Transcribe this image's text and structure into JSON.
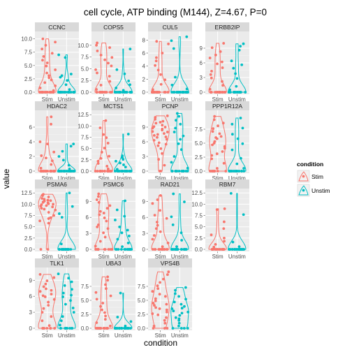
{
  "chart_data": {
    "type": "violin-jitter-facets",
    "title": "cell cycle, ATP binding (M144), Z=4.67, P=0",
    "xlabel": "condition",
    "ylabel": "value",
    "categories": [
      "Stim",
      "Unstim"
    ],
    "legend": {
      "title": "condition",
      "placement": "right",
      "entries": [
        {
          "label": "Stim",
          "color": "#F8766D"
        },
        {
          "label": "Unstim",
          "color": "#00BFC4"
        }
      ]
    },
    "colors": {
      "Stim": "#F8766D",
      "Unstim": "#00BFC4",
      "panel": "#EBEBEB",
      "strip": "#D9D9D9",
      "grid": "#FFFFFF"
    },
    "facets": [
      {
        "name": "CCNC",
        "ylim": [
          0,
          11
        ],
        "yticks": [
          "0.0",
          "2.5",
          "5.0",
          "7.5",
          "10.0"
        ],
        "ytick_values": [
          0,
          2.5,
          5,
          7.5,
          10
        ],
        "stim": [
          0,
          0,
          0,
          0,
          0,
          0,
          0,
          0,
          0,
          0,
          0,
          0,
          0,
          0,
          0,
          0,
          0,
          0,
          0.3,
          0.8,
          1.2,
          1.8,
          2.3,
          2.7,
          3.1,
          3.6,
          4.2,
          4.9,
          5.5,
          6.0,
          6.7,
          7.3,
          8.1,
          8.8,
          9.4,
          10.0
        ],
        "unstim": [
          0,
          0,
          0,
          0,
          0,
          0,
          0,
          0,
          0,
          0,
          0,
          0,
          0,
          0,
          0,
          0,
          0,
          0,
          0,
          0,
          0,
          0.5,
          1.4,
          2.2,
          2.8,
          3.1,
          3.4,
          6.5,
          7.0
        ]
      },
      {
        "name": "COPS5",
        "ylim": [
          0,
          12.5
        ],
        "yticks": [
          "0.0",
          "2.5",
          "5.0",
          "7.5",
          "10.0"
        ],
        "ytick_values": [
          0,
          2.5,
          5,
          7.5,
          10
        ],
        "stim": [
          0,
          0,
          0,
          0,
          0,
          0,
          0,
          0,
          0,
          0,
          0,
          0,
          0,
          0,
          0,
          0.6,
          1.5,
          2.3,
          3.4,
          4.1,
          4.8,
          5.6,
          6.2,
          6.9,
          7.4,
          7.9,
          8.8,
          9.5,
          10.0,
          10.5
        ],
        "unstim": [
          0,
          0,
          0,
          0,
          0,
          0,
          0,
          0,
          0,
          0,
          0,
          0,
          0,
          0,
          0,
          0,
          0,
          0,
          0,
          0,
          0,
          0,
          0,
          0,
          0.4,
          0.9,
          1.6,
          2.4,
          3.9,
          4.8,
          9.2
        ]
      },
      {
        "name": "CUL5",
        "ylim": [
          0,
          9
        ],
        "yticks": [
          "0",
          "2",
          "4",
          "6",
          "8"
        ],
        "ytick_values": [
          0,
          2,
          4,
          6,
          8
        ],
        "stim": [
          0,
          0,
          0,
          0,
          0,
          0,
          0,
          0,
          0,
          0,
          0,
          0,
          0,
          0,
          0,
          0,
          0,
          0,
          0,
          0,
          0.4,
          1.2,
          1.9,
          2.7,
          3.4,
          4.1,
          4.8,
          5.3,
          6.0,
          7.4,
          7.8
        ],
        "unstim": [
          0,
          0,
          0,
          0,
          0,
          0,
          0,
          0,
          0,
          0,
          0,
          0,
          0,
          0,
          0,
          0,
          0,
          0,
          0,
          0,
          0,
          0,
          0,
          0,
          0,
          0.5,
          1.1,
          2.3,
          6.7,
          7.9,
          8.5
        ]
      },
      {
        "name": "ERBB2IP",
        "ylim": [
          0,
          12
        ],
        "yticks": [
          "0",
          "3",
          "6",
          "9"
        ],
        "ytick_values": [
          0,
          3,
          6,
          9
        ],
        "stim": [
          0,
          0,
          0,
          0,
          0,
          0,
          0,
          0,
          0,
          0,
          0,
          0,
          0,
          0,
          0,
          0,
          0.6,
          1.4,
          2.2,
          2.9,
          3.6,
          4.3,
          5.0,
          5.8,
          6.2,
          7.0,
          7.6,
          8.3,
          9.1,
          10.0
        ],
        "unstim": [
          0,
          0,
          0,
          0,
          0,
          0,
          0,
          0,
          0,
          0,
          0,
          0,
          0,
          0,
          0,
          0,
          0,
          0,
          0,
          0,
          0.5,
          1.2,
          2.8,
          3.8,
          4.9,
          5.6,
          6.4,
          8.6,
          9.4,
          9.9
        ]
      },
      {
        "name": "HDAC2",
        "ylim": [
          0,
          8
        ],
        "yticks": [
          "0",
          "2",
          "4",
          "6"
        ],
        "ytick_values": [
          0,
          2,
          4,
          6
        ],
        "stim": [
          0,
          0,
          0,
          0,
          0,
          0,
          0,
          0,
          0,
          0,
          0,
          0,
          0,
          0,
          0,
          0,
          0,
          0,
          0,
          0,
          0.4,
          0.9,
          1.4,
          1.8,
          2.1,
          2.6,
          3.7,
          4.0,
          6.4,
          7.4
        ],
        "unstim": [
          0,
          0,
          0,
          0,
          0,
          0,
          0,
          0,
          0,
          0,
          0,
          0,
          0,
          0,
          0,
          0,
          0,
          0,
          0,
          0,
          0,
          0,
          0,
          0,
          0.3,
          0.8,
          1.5,
          2.0,
          2.7,
          3.4,
          3.7
        ]
      },
      {
        "name": "MCTS1",
        "ylim": [
          0,
          13
        ],
        "yticks": [
          "0.0",
          "2.5",
          "5.0",
          "7.5",
          "10.0",
          "12.5"
        ],
        "ytick_values": [
          0,
          2.5,
          5,
          7.5,
          10,
          12.5
        ],
        "stim": [
          0,
          0,
          0,
          0,
          0,
          0,
          0,
          0,
          0,
          0,
          0,
          0,
          0,
          0,
          0,
          0,
          0,
          0.5,
          1.1,
          1.7,
          2.2,
          2.8,
          3.3,
          4.2,
          5.1,
          6.2,
          7.4,
          8.1,
          9.6,
          11.2
        ],
        "unstim": [
          0,
          0,
          0,
          0,
          0,
          0,
          0,
          0,
          0,
          0,
          0,
          0,
          0,
          0,
          0,
          0,
          0,
          0,
          0,
          0,
          0.4,
          0.9,
          1.4,
          1.8,
          2.2,
          2.6,
          3.0,
          3.4,
          8.2
        ]
      },
      {
        "name": "PCNP",
        "ylim": [
          0,
          12
        ],
        "yticks": [
          "0",
          "3",
          "6",
          "9"
        ],
        "ytick_values": [
          0,
          3,
          6,
          9
        ],
        "stim": [
          0,
          0,
          1.2,
          2.4,
          3.6,
          4.6,
          5.2,
          5.8,
          6.3,
          6.9,
          7.3,
          7.7,
          8.1,
          8.4,
          8.8,
          9.1,
          9.4,
          9.8,
          10.2,
          10.6,
          11.0,
          11.3,
          7.0,
          7.5,
          8.0,
          8.6,
          9.0,
          6.5,
          5.5,
          10.0
        ],
        "unstim": [
          0,
          0,
          0,
          0,
          0,
          0,
          0,
          0,
          0,
          0,
          0,
          0,
          0,
          0.6,
          1.8,
          3.0,
          4.4,
          5.6,
          6.5,
          7.2,
          8.0,
          8.8,
          9.6,
          10.4,
          11.2,
          11.8
        ]
      },
      {
        "name": "PPP1R12A",
        "ylim": [
          0,
          10.5
        ],
        "yticks": [
          "0.0",
          "2.5",
          "5.0",
          "7.5"
        ],
        "ytick_values": [
          0,
          2.5,
          5,
          7.5
        ],
        "stim": [
          0,
          0,
          0,
          0,
          0,
          0,
          0,
          0,
          0.5,
          1.4,
          2.2,
          2.8,
          3.5,
          4.1,
          4.7,
          5.3,
          5.8,
          6.2,
          6.7,
          7.1,
          7.6,
          8.1,
          8.6,
          9.2,
          9.8,
          3.1,
          4.4,
          5.0,
          6.0
        ],
        "unstim": [
          0,
          0,
          0,
          0,
          0,
          0,
          0,
          0,
          0,
          0,
          0,
          0,
          0,
          0,
          0,
          0,
          0,
          0.5,
          1.3,
          2.3,
          3.8,
          4.9,
          5.8,
          6.6,
          7.7,
          8.4,
          9.5
        ]
      },
      {
        "name": "PSMA6",
        "ylim": [
          0,
          13
        ],
        "yticks": [
          "0.0",
          "2.5",
          "5.0",
          "7.5",
          "10.0",
          "12.5"
        ],
        "ytick_values": [
          0,
          2.5,
          5,
          7.5,
          10,
          12.5
        ],
        "stim": [
          0,
          0,
          5.8,
          6.8,
          7.5,
          8.2,
          8.7,
          9.1,
          9.4,
          9.7,
          9.9,
          10.1,
          10.3,
          10.5,
          10.7,
          10.9,
          11.1,
          11.3,
          11.6,
          11.9,
          12.2,
          9.6,
          10.0,
          10.4,
          10.8,
          8.9,
          6.3,
          7.0
        ],
        "unstim": [
          0,
          0,
          0,
          0,
          0,
          0,
          0,
          0,
          0,
          0,
          0,
          0,
          0,
          0,
          0,
          0,
          0,
          0,
          0,
          0,
          0,
          0,
          0,
          1.2,
          7.1,
          7.9,
          9.5,
          12.5
        ]
      },
      {
        "name": "PSMC6",
        "ylim": [
          0,
          11
        ],
        "yticks": [
          "0",
          "3",
          "6",
          "9"
        ],
        "ytick_values": [
          0,
          3,
          6,
          9
        ],
        "stim": [
          0,
          0,
          0,
          0,
          0,
          0,
          0,
          0,
          0,
          0,
          0,
          0.6,
          1.5,
          2.3,
          3.1,
          3.9,
          4.6,
          5.3,
          5.9,
          6.5,
          7.1,
          7.7,
          8.2,
          8.8,
          9.3,
          9.9,
          10.4,
          4.2,
          6.8
        ],
        "unstim": [
          0,
          0,
          0,
          0,
          0,
          0,
          0,
          0,
          0,
          0,
          0,
          0,
          0,
          0,
          0.5,
          1.2,
          1.9,
          2.5,
          3.1,
          3.6,
          4.2,
          5.5,
          6.2,
          7.4,
          9.1
        ]
      },
      {
        "name": "RAD21",
        "ylim": [
          0,
          11
        ],
        "yticks": [
          "0",
          "3",
          "6",
          "9"
        ],
        "ytick_values": [
          0,
          3,
          6,
          9
        ],
        "stim": [
          0,
          0,
          0,
          0,
          0,
          0,
          0,
          0,
          0,
          0,
          0,
          0,
          0,
          0,
          0.5,
          1.2,
          1.9,
          2.6,
          3.3,
          3.9,
          4.5,
          5.1,
          5.8,
          6.4,
          7.3,
          8.6,
          9.3,
          10.1
        ],
        "unstim": [
          0,
          0,
          0,
          0,
          0,
          0,
          0,
          0,
          0,
          0,
          0,
          0,
          0,
          0,
          0,
          0,
          0,
          0,
          0,
          0,
          0.5,
          1.7,
          3.1,
          4.6,
          6.1,
          8.9,
          10.4
        ]
      },
      {
        "name": "RBM7",
        "ylim": [
          0,
          13
        ],
        "yticks": [
          "0.0",
          "2.5",
          "5.0",
          "7.5",
          "10.0",
          "12.5"
        ],
        "ytick_values": [
          0,
          2.5,
          5,
          7.5,
          10,
          12.5
        ],
        "stim": [
          0,
          0,
          0,
          0,
          0,
          0,
          0,
          0,
          0,
          0,
          0,
          0,
          0,
          0,
          0,
          0,
          0,
          0,
          0,
          0.5,
          1.1,
          1.8,
          2.5,
          3.2,
          4.6,
          6.1,
          8.8,
          9.0
        ],
        "unstim": [
          0,
          0,
          0,
          0,
          0,
          0,
          0,
          0,
          0,
          0,
          0,
          0,
          0,
          0,
          0,
          0,
          0,
          0,
          0,
          0,
          0,
          0,
          0,
          0,
          0,
          0.6,
          1.6,
          7.7,
          12.4
        ]
      },
      {
        "name": "TLK1",
        "ylim": [
          0,
          11
        ],
        "yticks": [
          "0",
          "3",
          "6",
          "9"
        ],
        "ytick_values": [
          0,
          3,
          6,
          9
        ],
        "stim": [
          0,
          0,
          0,
          0,
          0,
          0,
          0,
          0.5,
          1.4,
          2.2,
          3.0,
          3.7,
          4.3,
          4.9,
          5.4,
          5.9,
          6.4,
          6.9,
          7.4,
          7.8,
          8.3,
          8.9,
          9.5,
          10.1,
          6.1,
          7.1
        ],
        "unstim": [
          0,
          0,
          0,
          0,
          0,
          0,
          0,
          0,
          0,
          0,
          0.6,
          1.4,
          2.2,
          3.0,
          3.8,
          4.5,
          5.2,
          5.9,
          6.6,
          7.3,
          8.0,
          8.7,
          9.4,
          10.2,
          6.2
        ]
      },
      {
        "name": "UBA3",
        "ylim": [
          0,
          10.5
        ],
        "yticks": [
          "0.0",
          "2.5",
          "5.0",
          "7.5"
        ],
        "ytick_values": [
          0,
          2.5,
          5,
          7.5
        ],
        "stim": [
          0,
          0,
          0,
          0,
          0,
          0,
          0,
          0,
          0,
          0,
          0,
          0,
          0,
          0.4,
          1.0,
          1.6,
          2.2,
          2.8,
          3.3,
          3.9,
          4.5,
          5.2,
          5.8,
          6.4,
          7.1,
          7.8,
          8.6,
          9.2
        ],
        "unstim": [
          0,
          0,
          0,
          0,
          0,
          0,
          0,
          0,
          0,
          0,
          0,
          0,
          0,
          0,
          0,
          0,
          0,
          0,
          0,
          0,
          0,
          0,
          0.4,
          1.2,
          2.0,
          6.3
        ]
      },
      {
        "name": "VPS4B",
        "ylim": [
          0,
          10.5
        ],
        "yticks": [
          "0.0",
          "2.5",
          "5.0",
          "7.5"
        ],
        "ytick_values": [
          0,
          2.5,
          5,
          7.5
        ],
        "stim": [
          0,
          0,
          0,
          0.4,
          0.9,
          1.4,
          1.9,
          2.4,
          2.9,
          3.3,
          3.7,
          4.1,
          4.5,
          4.9,
          5.3,
          5.7,
          6.1,
          6.6,
          7.1,
          7.6,
          8.2,
          8.8,
          9.6,
          10.1,
          2.6,
          3.5,
          4.3
        ],
        "unstim": [
          0,
          0,
          0,
          0,
          0.4,
          0.9,
          1.4,
          1.9,
          2.3,
          2.7,
          3.1,
          3.5,
          3.9,
          4.3,
          4.7,
          5.2,
          5.7,
          6.2,
          6.8,
          7.3,
          1.7,
          2.9,
          3.6
        ]
      }
    ]
  }
}
